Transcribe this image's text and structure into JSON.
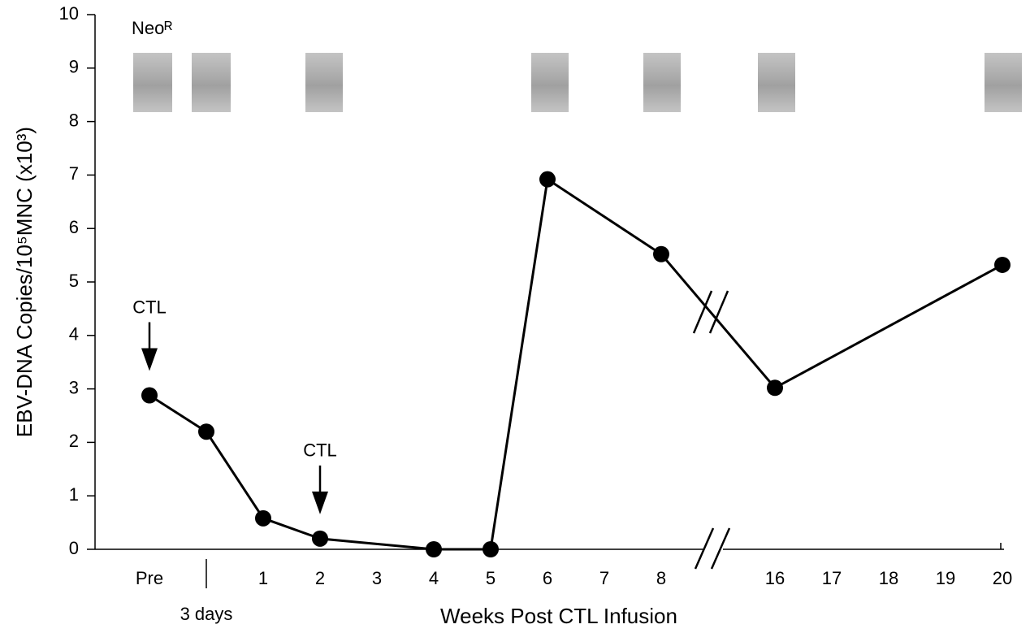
{
  "chart_data": {
    "type": "line",
    "y_label": "EBV-DNA Copies/10⁵MNC (x10³)",
    "x_label": "Weeks Post CTL Infusion",
    "gel_label": "Neoᴿ",
    "categories": [
      "Pre",
      "3 days",
      "1",
      "2",
      "3",
      "4",
      "5",
      "6",
      "7",
      "8",
      null,
      "16",
      "17",
      "18",
      "19",
      "20"
    ],
    "series": [
      {
        "x": [
          "Pre",
          "3 days",
          "1",
          "2",
          "4",
          "5",
          "6",
          "8",
          "16",
          "20"
        ],
        "values": [
          2.88,
          2.2,
          0.58,
          0.2,
          0,
          0,
          6.92,
          5.52,
          3.02,
          5.32
        ],
        "color": "#000000"
      }
    ],
    "annotations": [
      {
        "text": "CTL",
        "x": "Pre"
      },
      {
        "text": "CTL",
        "x": "2"
      }
    ],
    "ylim": [
      0,
      10
    ],
    "yticks": [
      0,
      1,
      2,
      3,
      4,
      5,
      6,
      7,
      8,
      9,
      10
    ],
    "grid": false
  }
}
